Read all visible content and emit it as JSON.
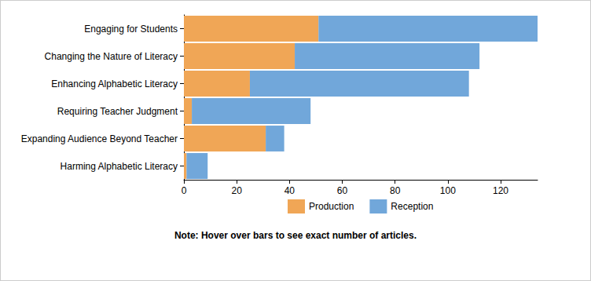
{
  "chart_data": {
    "type": "bar",
    "orientation": "horizontal",
    "stacked": true,
    "categories": [
      "Engaging for Students",
      "Changing the Nature of Literacy",
      "Enhancing Alphabetic Literacy",
      "Requiring Teacher Judgment",
      "Expanding Audience Beyond Teacher",
      "Harming Alphabetic Literacy"
    ],
    "series": [
      {
        "name": "Production",
        "color": "#f0a656",
        "values": [
          51,
          42,
          25,
          3,
          31,
          1
        ]
      },
      {
        "name": "Reception",
        "color": "#71a7da",
        "values": [
          83,
          70,
          83,
          45,
          7,
          8
        ]
      }
    ],
    "xlim": [
      0,
      134
    ],
    "xticks": [
      0,
      20,
      40,
      60,
      80,
      100,
      120
    ],
    "grid": false,
    "legend": "bottom",
    "annotations": [
      "Note: Hover over bars to see exact number of articles."
    ]
  }
}
